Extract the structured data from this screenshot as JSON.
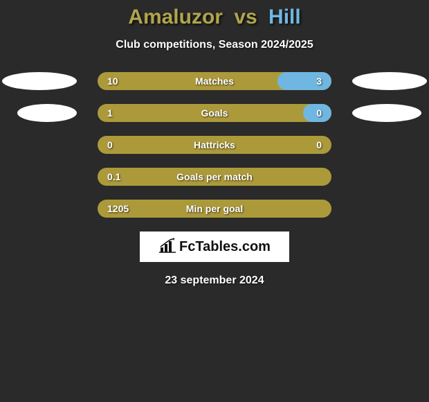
{
  "title": {
    "player1": "Amaluzor",
    "vs": "vs",
    "player2": "Hill",
    "player1_color": "#b0a54c",
    "player2_color": "#6fb7e0"
  },
  "subtitle": "Club competitions, Season 2024/2025",
  "bar_style": {
    "left_color": "#ac9a3a",
    "right_color": "#6fb7e0",
    "text_color": "#ffffff"
  },
  "rows": [
    {
      "label": "Matches",
      "left": "10",
      "right": "3",
      "right_fill_pct": 23,
      "show_ovals": true,
      "oval_left_indent": 0,
      "oval_right_indent": 0
    },
    {
      "label": "Goals",
      "left": "1",
      "right": "0",
      "right_fill_pct": 12,
      "show_ovals": true,
      "oval_left_indent": 22,
      "oval_right_indent": 8
    },
    {
      "label": "Hattricks",
      "left": "0",
      "right": "0",
      "right_fill_pct": 0,
      "show_ovals": false
    },
    {
      "label": "Goals per match",
      "left": "0.1",
      "right": "",
      "right_fill_pct": 0,
      "show_ovals": false
    },
    {
      "label": "Min per goal",
      "left": "1205",
      "right": "",
      "right_fill_pct": 0,
      "show_ovals": false
    }
  ],
  "logo_text": "FcTables.com",
  "date": "23 september 2024",
  "background_color": "#2a2a2a"
}
